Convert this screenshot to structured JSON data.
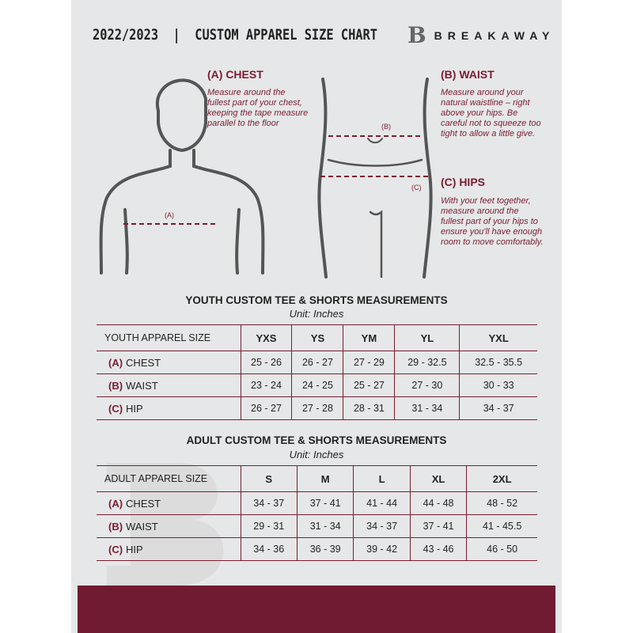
{
  "header": {
    "title": "2022/2023  |  CUSTOM APPAREL SIZE CHART",
    "brand": "BREAKAWAY",
    "logo_letter": "B"
  },
  "measure": {
    "chest": {
      "title": "(A) CHEST",
      "desc": "Measure around the fullest part of your chest, keeping the tape measure parallel to the floor",
      "marker": "(A)"
    },
    "waist": {
      "title": "(B) WAIST",
      "desc": "Measure around your natural waistline – right above your hips. Be careful not to squeeze too tight to allow a little give.",
      "marker": "(B)"
    },
    "hips": {
      "title": "(C) HIPS",
      "desc": "With your feet together, measure around the fullest part of your hips to ensure you'll have enough room to move comfortably.",
      "marker": "(C)"
    }
  },
  "youth": {
    "title": "YOUTH CUSTOM TEE & SHORTS MEASUREMENTS",
    "unit": "Unit: Inches",
    "size_label": "YOUTH APPAREL SIZE",
    "sizes": [
      "YXS",
      "YS",
      "YM",
      "YL",
      "YXL"
    ],
    "rows": [
      {
        "letter": "(A)",
        "name": "CHEST",
        "values": [
          "25 - 26",
          "26 - 27",
          "27 - 29",
          "29 - 32.5",
          "32.5 - 35.5"
        ]
      },
      {
        "letter": "(B)",
        "name": "WAIST",
        "values": [
          "23 - 24",
          "24 - 25",
          "25 - 27",
          "27 - 30",
          "30 - 33"
        ]
      },
      {
        "letter": "(C)",
        "name": "HIP",
        "values": [
          "26 - 27",
          "27 - 28",
          "28 - 31",
          "31 - 34",
          "34 - 37"
        ]
      }
    ]
  },
  "adult": {
    "title": "ADULT CUSTOM TEE & SHORTS MEASUREMENTS",
    "unit": "Unit: Inches",
    "size_label": "ADULT APPAREL SIZE",
    "sizes": [
      "S",
      "M",
      "L",
      "XL",
      "2XL"
    ],
    "rows": [
      {
        "letter": "(A)",
        "name": "CHEST",
        "values": [
          "34 - 37",
          "37 - 41",
          "41 - 44",
          "44 - 48",
          "48 - 52"
        ]
      },
      {
        "letter": "(B)",
        "name": "WAIST",
        "values": [
          "29 - 31",
          "31 - 34",
          "34 - 37",
          "37 - 41",
          "41 - 45.5"
        ]
      },
      {
        "letter": "(C)",
        "name": "HIP",
        "values": [
          "34 - 36",
          "36 - 39",
          "39 - 42",
          "43 - 46",
          "46 - 50"
        ]
      }
    ]
  },
  "colors": {
    "accent": "#7a1c30",
    "background": "#e6e7e8",
    "footer": "#701b31"
  }
}
